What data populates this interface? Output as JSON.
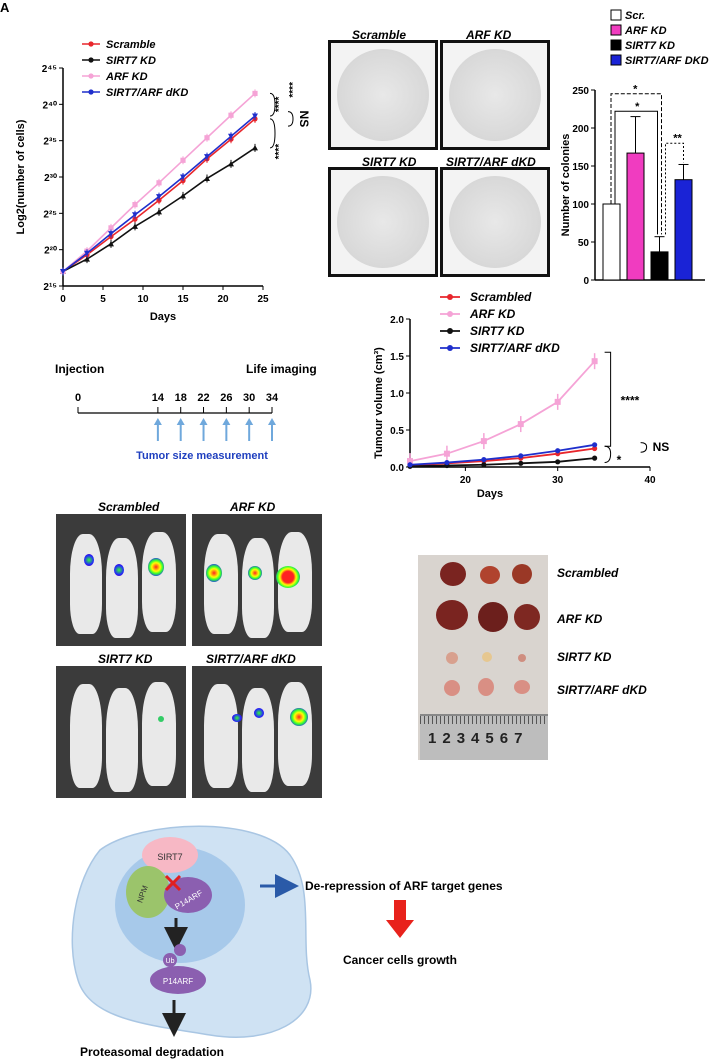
{
  "panel_letter": "A",
  "growth_chart": {
    "ylabel": "Log2(number of cells)",
    "xlabel": "Days",
    "y_ticks": [
      "2¹⁵",
      "2²⁰",
      "2²⁵",
      "2³⁰",
      "2³⁵",
      "2⁴⁰",
      "2⁴⁵"
    ],
    "x_ticks": [
      "0",
      "5",
      "10",
      "15",
      "20",
      "25"
    ],
    "legend": [
      "Scramble",
      "SIRT7 KD",
      "ARF KD",
      "SIRT7/ARF dKD"
    ],
    "sig": [
      "****",
      "****",
      "****",
      "NS"
    ]
  },
  "colony_plates": [
    "Scramble",
    "ARF KD",
    "SIRT7 KD",
    "SIRT7/ARF dKD"
  ],
  "colony_bar": {
    "ylabel": "Number of colonies",
    "y_ticks": [
      "0",
      "50",
      "100",
      "150",
      "200",
      "250"
    ],
    "legend": [
      "Scr.",
      "ARF KD",
      "SIRT7 KD",
      "SIRT7/ARF DKD"
    ],
    "sig": [
      "*",
      "*",
      "**"
    ]
  },
  "timeline": {
    "start_label": "Injection",
    "end_label": "Life imaging",
    "ticks": [
      "0",
      "14",
      "18",
      "22",
      "26",
      "30",
      "34"
    ],
    "caption": "Tumor size  measurement"
  },
  "tumour_chart": {
    "ylabel": "Tumour volume (cm³)",
    "xlabel": "Days",
    "y_ticks": [
      "0.0",
      "0.5",
      "1.0",
      "1.5",
      "2.0"
    ],
    "x_ticks": [
      "20",
      "30",
      "40"
    ],
    "legend": [
      "Scrambled",
      "ARF KD",
      "SIRT7 KD",
      "SIRT7/ARF dKD"
    ],
    "sig": [
      "****",
      "*",
      "NS"
    ]
  },
  "imaging_labels": [
    "Scrambled",
    "ARF KD",
    "SIRT7 KD",
    "SIRT7/ARF dKD"
  ],
  "tumor_labels": [
    "Scrambled",
    "ARF KD",
    "SIRT7 KD",
    "SIRT7/ARF dKD"
  ],
  "ruler_numbers": [
    "1",
    "2",
    "3",
    "4",
    "5",
    "6",
    "7"
  ],
  "model": {
    "sirt7": "SIRT7",
    "npm": "NPM",
    "p14arf": "P14ARF",
    "ub": "Ub",
    "p14arf_lower": "P14ARF",
    "derepression": "De-repression of ARF target genes",
    "growth": "Cancer cells growth",
    "degradation": "Proteasomal degradation"
  },
  "colors": {
    "scramble": "#e8262c",
    "sirt7": "#111111",
    "arf": "#f5a3d6",
    "dkd": "#1f2fcc",
    "bar_arf": "#f03cc0",
    "bar_dkd": "#1a23d6",
    "timeline_arrow": "#6fa8dc",
    "timeline_text": "#1f3fbf"
  },
  "chart_data": [
    {
      "type": "line",
      "title": "",
      "xlabel": "Days",
      "ylabel": "Log2(number of cells)",
      "x": [
        0,
        3,
        6,
        9,
        12,
        15,
        18,
        21,
        24
      ],
      "series": [
        {
          "name": "Scramble",
          "values": [
            17,
            19.3,
            21.8,
            24.2,
            26.8,
            29.5,
            32.5,
            35.2,
            38.0
          ]
        },
        {
          "name": "SIRT7 KD",
          "values": [
            17,
            18.7,
            20.8,
            23.2,
            25.2,
            27.4,
            29.8,
            31.8,
            34.0
          ]
        },
        {
          "name": "ARF KD",
          "values": [
            17,
            19.8,
            23.0,
            26.2,
            29.2,
            32.3,
            35.4,
            38.5,
            41.5
          ]
        },
        {
          "name": "SIRT7/ARF dKD",
          "values": [
            17,
            19.5,
            22.2,
            24.8,
            27.3,
            30.0,
            32.8,
            35.6,
            38.4
          ]
        }
      ],
      "xlim": [
        0,
        25
      ],
      "ylim": [
        15,
        45
      ]
    },
    {
      "type": "bar",
      "ylabel": "Number of colonies",
      "categories": [
        "Scr.",
        "ARF KD",
        "SIRT7 KD",
        "SIRT7/ARF DKD"
      ],
      "values": [
        100,
        167,
        37,
        132
      ],
      "errors": [
        0,
        48,
        20,
        20
      ],
      "ylim": [
        0,
        250
      ]
    },
    {
      "type": "line",
      "xlabel": "Days",
      "ylabel": "Tumour volume (cm³)",
      "x": [
        14,
        18,
        22,
        26,
        30,
        34
      ],
      "series": [
        {
          "name": "Scrambled",
          "values": [
            0.02,
            0.05,
            0.08,
            0.12,
            0.18,
            0.25
          ]
        },
        {
          "name": "ARF KD",
          "values": [
            0.08,
            0.18,
            0.35,
            0.58,
            0.88,
            1.43
          ]
        },
        {
          "name": "SIRT7 KD",
          "values": [
            0.01,
            0.02,
            0.03,
            0.05,
            0.07,
            0.12
          ]
        },
        {
          "name": "SIRT7/ARF dKD",
          "values": [
            0.03,
            0.06,
            0.1,
            0.15,
            0.22,
            0.3
          ]
        }
      ],
      "xlim": [
        14,
        40
      ],
      "ylim": [
        0,
        2.0
      ]
    }
  ]
}
